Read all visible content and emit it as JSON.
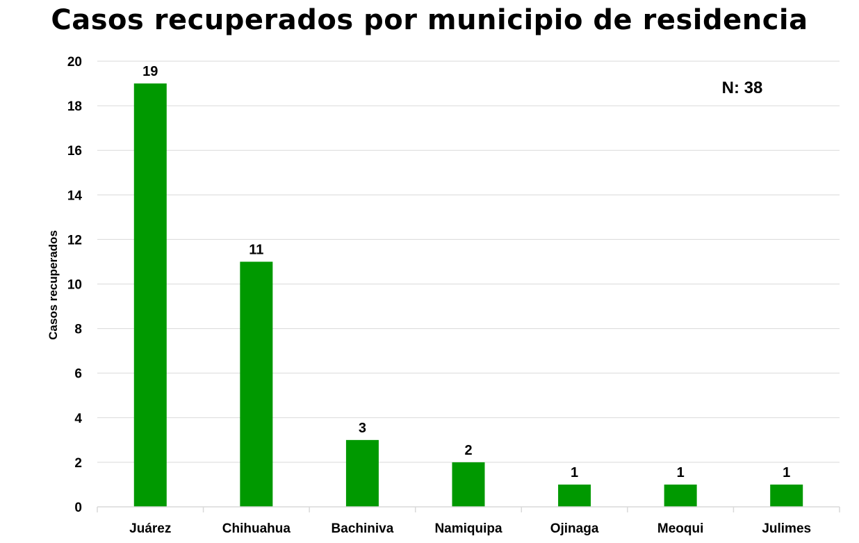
{
  "chart_data": {
    "type": "bar",
    "title": "Casos recuperados por municipio de residencia",
    "xlabel": "",
    "ylabel": "Casos recuperados",
    "annotation": "N: 38",
    "categories": [
      "Juárez",
      "Chihuahua",
      "Bachiniva",
      "Namiquipa",
      "Ojinaga",
      "Meoqui",
      "Julimes"
    ],
    "values": [
      19,
      11,
      3,
      2,
      1,
      1,
      1
    ],
    "data_labels": [
      "19",
      "11",
      "3",
      "2",
      "1",
      "1",
      "1"
    ],
    "ylim": [
      0,
      20
    ],
    "yticks": [
      0,
      2,
      4,
      6,
      8,
      10,
      12,
      14,
      16,
      18,
      20
    ],
    "ytick_labels": [
      "0",
      "2",
      "4",
      "6",
      "8",
      "10",
      "12",
      "14",
      "16",
      "18",
      "20"
    ],
    "grid": true,
    "bar_color": "#009900",
    "grid_color": "#d9d9d9"
  }
}
